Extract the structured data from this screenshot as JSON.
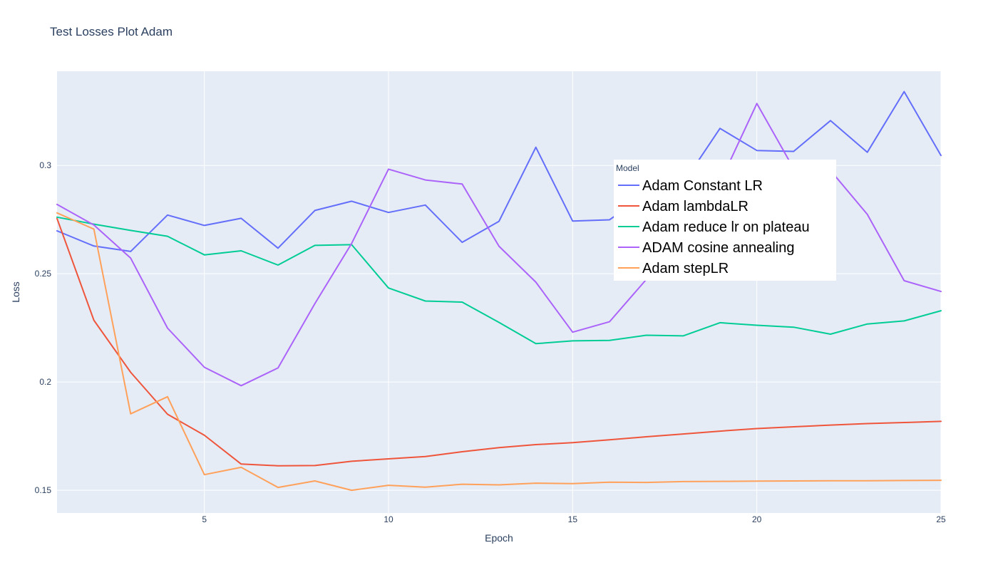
{
  "chart_data": {
    "type": "line",
    "title": "Test Losses Plot Adam",
    "xlabel": "Epoch",
    "ylabel": "Loss",
    "xlim": [
      1,
      25
    ],
    "ylim": [
      0.1395,
      0.3435
    ],
    "xticks": [
      5,
      10,
      15,
      20,
      25
    ],
    "yticks": [
      0.15,
      0.2,
      0.25,
      0.3
    ],
    "ytick_labels": [
      "0.15",
      "0.2",
      "0.25",
      "0.3"
    ],
    "grid": true,
    "background": "#e5ecf6",
    "legend": {
      "title": "Model",
      "placement": "top-right-inside"
    },
    "x": [
      1,
      2,
      3,
      4,
      5,
      6,
      7,
      8,
      9,
      10,
      11,
      12,
      13,
      14,
      15,
      16,
      17,
      18,
      19,
      20,
      21,
      22,
      23,
      24,
      25
    ],
    "series": [
      {
        "name": "Adam Constant LR",
        "color": "#636efa",
        "values": [
          0.2698,
          0.2628,
          0.2603,
          0.2771,
          0.2723,
          0.2756,
          0.2618,
          0.2792,
          0.2835,
          0.2783,
          0.2817,
          0.2645,
          0.2742,
          0.3084,
          0.2743,
          0.2749,
          0.2867,
          0.2917,
          0.3171,
          0.3069,
          0.3065,
          0.3207,
          0.3061,
          0.3341,
          0.3046
        ]
      },
      {
        "name": "Adam lambdaLR",
        "color": "#ef553b",
        "values": [
          0.2755,
          0.2285,
          0.2045,
          0.1851,
          0.1754,
          0.1621,
          0.1613,
          0.1614,
          0.1634,
          0.1645,
          0.1656,
          0.1678,
          0.1697,
          0.1711,
          0.172,
          0.1733,
          0.1747,
          0.176,
          0.1773,
          0.1785,
          0.1793,
          0.1801,
          0.1808,
          0.1813,
          0.1818
        ]
      },
      {
        "name": "Adam reduce lr on plateau",
        "color": "#00cc96",
        "values": [
          0.2761,
          0.2729,
          0.27,
          0.2673,
          0.2587,
          0.2606,
          0.254,
          0.2631,
          0.2634,
          0.2434,
          0.2374,
          0.2369,
          0.2275,
          0.2177,
          0.219,
          0.2192,
          0.2216,
          0.2213,
          0.2274,
          0.2262,
          0.2253,
          0.2221,
          0.2268,
          0.2282,
          0.2329
        ]
      },
      {
        "name": "ADAM cosine annealing",
        "color": "#ab63fa",
        "values": [
          0.282,
          0.2725,
          0.2572,
          0.2249,
          0.2068,
          0.1983,
          0.2065,
          0.2362,
          0.264,
          0.2983,
          0.2933,
          0.2914,
          0.2627,
          0.2461,
          0.223,
          0.2278,
          0.2474,
          0.2697,
          0.2921,
          0.3286,
          0.2986,
          0.2977,
          0.2774,
          0.2468,
          0.2418
        ]
      },
      {
        "name": "Adam stepLR",
        "color": "#ffa15a",
        "values": [
          0.2781,
          0.2706,
          0.1853,
          0.1932,
          0.1572,
          0.1606,
          0.1513,
          0.1543,
          0.15,
          0.1523,
          0.1514,
          0.1528,
          0.1525,
          0.1533,
          0.1531,
          0.1537,
          0.1536,
          0.154,
          0.1541,
          0.1542,
          0.1543,
          0.1544,
          0.1544,
          0.1545,
          0.1546
        ]
      }
    ]
  }
}
